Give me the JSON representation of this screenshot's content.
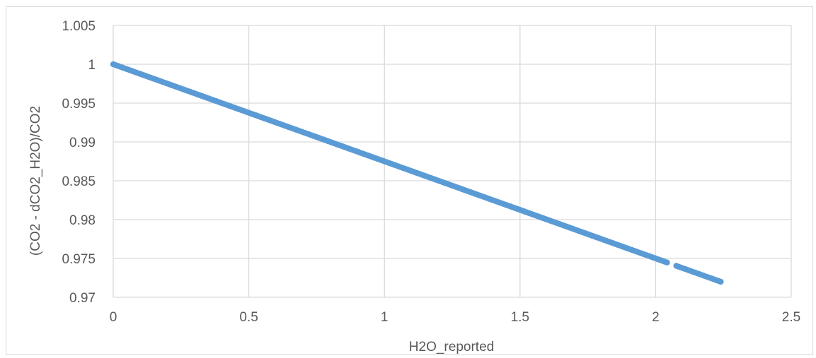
{
  "chart_data": {
    "type": "scatter",
    "title": "",
    "xlabel": "H2O_reported",
    "ylabel": "(CO2 - dCO2_H2O)/CO2",
    "xlim": [
      0,
      2.5
    ],
    "ylim": [
      0.97,
      1.005
    ],
    "x_ticks": [
      "0",
      "0.5",
      "1",
      "1.5",
      "2",
      "2.5"
    ],
    "y_ticks": [
      "1.005",
      "1",
      "0.995",
      "0.99",
      "0.985",
      "0.98",
      "0.975",
      "0.97"
    ],
    "grid": true,
    "legend": "none",
    "colors": {
      "series": "#5b9bd5",
      "grid": "#d9d9d9",
      "text": "#595959"
    },
    "series": [
      {
        "x_start": 0.0,
        "x_end": 2.24,
        "y_start": 1.0,
        "y_end": 0.972,
        "slope": -0.0125,
        "x_gaps": [
          [
            2.05,
            2.07
          ]
        ]
      }
    ]
  }
}
